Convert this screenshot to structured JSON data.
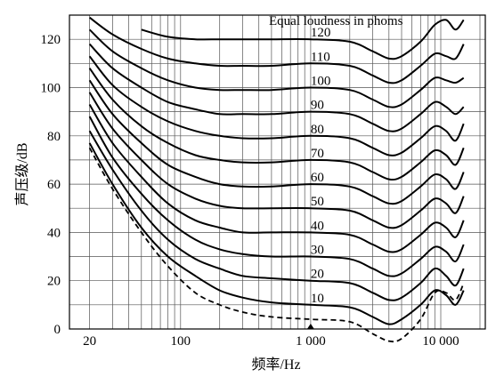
{
  "chart_data": {
    "type": "line",
    "title": "Equal loudness in phoms",
    "xlabel": "频率/Hz",
    "ylabel": "声压级/dB",
    "x_scale": "log",
    "xlim": [
      14,
      22000
    ],
    "ylim": [
      0,
      130
    ],
    "x_ticks": [
      {
        "value": 20,
        "label": "20"
      },
      {
        "value": 100,
        "label": "100"
      },
      {
        "value": 1000,
        "label": "1 000"
      },
      {
        "value": 10000,
        "label": "10 000"
      }
    ],
    "y_ticks": [
      {
        "value": 0,
        "label": "0"
      },
      {
        "value": 20,
        "label": "20"
      },
      {
        "value": 40,
        "label": "40"
      },
      {
        "value": 60,
        "label": "60"
      },
      {
        "value": 80,
        "label": "80"
      },
      {
        "value": 100,
        "label": "100"
      },
      {
        "value": 120,
        "label": "120"
      }
    ],
    "grid": true,
    "series": [
      {
        "name": "10",
        "style": "solid",
        "points": [
          [
            20,
            77
          ],
          [
            30,
            60
          ],
          [
            50,
            42
          ],
          [
            80,
            30
          ],
          [
            130,
            22
          ],
          [
            200,
            16
          ],
          [
            300,
            13
          ],
          [
            500,
            11
          ],
          [
            1000,
            10
          ],
          [
            2000,
            9
          ],
          [
            3000,
            5
          ],
          [
            4000,
            2
          ],
          [
            5000,
            4
          ],
          [
            7000,
            10
          ],
          [
            9000,
            16
          ],
          [
            11000,
            14
          ],
          [
            13000,
            10
          ],
          [
            15000,
            16
          ]
        ]
      },
      {
        "name": "20",
        "style": "solid",
        "points": [
          [
            20,
            82
          ],
          [
            30,
            66
          ],
          [
            50,
            49
          ],
          [
            80,
            37
          ],
          [
            130,
            29
          ],
          [
            200,
            25
          ],
          [
            300,
            22
          ],
          [
            500,
            21
          ],
          [
            1000,
            20
          ],
          [
            2000,
            19
          ],
          [
            3000,
            15
          ],
          [
            4000,
            12
          ],
          [
            5000,
            13
          ],
          [
            7000,
            19
          ],
          [
            9000,
            25
          ],
          [
            11000,
            22
          ],
          [
            13000,
            18
          ],
          [
            15000,
            25
          ]
        ]
      },
      {
        "name": "30",
        "style": "solid",
        "points": [
          [
            20,
            88
          ],
          [
            30,
            71
          ],
          [
            50,
            56
          ],
          [
            80,
            45
          ],
          [
            130,
            37
          ],
          [
            200,
            33
          ],
          [
            300,
            31
          ],
          [
            500,
            30
          ],
          [
            1000,
            30
          ],
          [
            2000,
            29
          ],
          [
            3000,
            25
          ],
          [
            4000,
            22
          ],
          [
            5000,
            23
          ],
          [
            7000,
            29
          ],
          [
            9000,
            34
          ],
          [
            11000,
            32
          ],
          [
            13000,
            28
          ],
          [
            15000,
            35
          ]
        ]
      },
      {
        "name": "40",
        "style": "solid",
        "points": [
          [
            20,
            93
          ],
          [
            30,
            77
          ],
          [
            50,
            63
          ],
          [
            80,
            52
          ],
          [
            130,
            45
          ],
          [
            200,
            42
          ],
          [
            300,
            40
          ],
          [
            500,
            40
          ],
          [
            1000,
            40
          ],
          [
            2000,
            39
          ],
          [
            3000,
            35
          ],
          [
            4000,
            32
          ],
          [
            5000,
            33
          ],
          [
            7000,
            39
          ],
          [
            9000,
            44
          ],
          [
            11000,
            42
          ],
          [
            13000,
            38
          ],
          [
            15000,
            45
          ]
        ]
      },
      {
        "name": "50",
        "style": "solid",
        "points": [
          [
            20,
            98
          ],
          [
            30,
            83
          ],
          [
            50,
            70
          ],
          [
            80,
            60
          ],
          [
            130,
            54
          ],
          [
            200,
            51
          ],
          [
            300,
            50
          ],
          [
            500,
            50
          ],
          [
            1000,
            50
          ],
          [
            2000,
            49
          ],
          [
            3000,
            45
          ],
          [
            4000,
            42
          ],
          [
            5000,
            43
          ],
          [
            7000,
            49
          ],
          [
            9000,
            54
          ],
          [
            11000,
            52
          ],
          [
            13000,
            48
          ],
          [
            15000,
            55
          ]
        ]
      },
      {
        "name": "60",
        "style": "solid",
        "points": [
          [
            20,
            103
          ],
          [
            30,
            89
          ],
          [
            50,
            77
          ],
          [
            80,
            68
          ],
          [
            130,
            63
          ],
          [
            200,
            60
          ],
          [
            300,
            59
          ],
          [
            500,
            59
          ],
          [
            1000,
            60
          ],
          [
            2000,
            59
          ],
          [
            3000,
            55
          ],
          [
            4000,
            52
          ],
          [
            5000,
            53
          ],
          [
            7000,
            59
          ],
          [
            9000,
            64
          ],
          [
            11000,
            62
          ],
          [
            13000,
            58
          ],
          [
            15000,
            65
          ]
        ]
      },
      {
        "name": "70",
        "style": "solid",
        "points": [
          [
            20,
            108
          ],
          [
            30,
            95
          ],
          [
            50,
            84
          ],
          [
            80,
            77
          ],
          [
            130,
            72
          ],
          [
            200,
            70
          ],
          [
            300,
            69
          ],
          [
            500,
            69
          ],
          [
            1000,
            70
          ],
          [
            2000,
            69
          ],
          [
            3000,
            65
          ],
          [
            4000,
            62
          ],
          [
            5000,
            63
          ],
          [
            7000,
            69
          ],
          [
            9000,
            74
          ],
          [
            11000,
            72
          ],
          [
            13000,
            68
          ],
          [
            15000,
            75
          ]
        ]
      },
      {
        "name": "80",
        "style": "solid",
        "points": [
          [
            20,
            113
          ],
          [
            30,
            101
          ],
          [
            50,
            92
          ],
          [
            80,
            86
          ],
          [
            130,
            82
          ],
          [
            200,
            80
          ],
          [
            300,
            79
          ],
          [
            500,
            79
          ],
          [
            1000,
            80
          ],
          [
            2000,
            79
          ],
          [
            3000,
            75
          ],
          [
            4000,
            72
          ],
          [
            5000,
            73
          ],
          [
            7000,
            79
          ],
          [
            9000,
            84
          ],
          [
            11000,
            82
          ],
          [
            13000,
            78
          ],
          [
            15000,
            85
          ]
        ]
      },
      {
        "name": "90",
        "style": "solid",
        "points": [
          [
            20,
            118
          ],
          [
            30,
            108
          ],
          [
            50,
            100
          ],
          [
            80,
            94
          ],
          [
            130,
            91
          ],
          [
            200,
            89
          ],
          [
            300,
            89
          ],
          [
            500,
            89
          ],
          [
            1000,
            90
          ],
          [
            2000,
            89
          ],
          [
            3000,
            85
          ],
          [
            4000,
            82
          ],
          [
            5000,
            83
          ],
          [
            7000,
            89
          ],
          [
            9000,
            94
          ],
          [
            11000,
            92
          ],
          [
            13000,
            89
          ],
          [
            15000,
            92
          ]
        ]
      },
      {
        "name": "100",
        "style": "solid",
        "points": [
          [
            20,
            124
          ],
          [
            30,
            115
          ],
          [
            50,
            108
          ],
          [
            80,
            103
          ],
          [
            130,
            100
          ],
          [
            200,
            99
          ],
          [
            300,
            99
          ],
          [
            500,
            99
          ],
          [
            1000,
            100
          ],
          [
            2000,
            99
          ],
          [
            3000,
            95
          ],
          [
            4000,
            92
          ],
          [
            5000,
            93
          ],
          [
            7000,
            99
          ],
          [
            9000,
            104
          ],
          [
            11000,
            103
          ],
          [
            13000,
            102
          ],
          [
            15000,
            104
          ]
        ]
      },
      {
        "name": "110",
        "style": "solid",
        "points": [
          [
            20,
            129
          ],
          [
            30,
            122
          ],
          [
            50,
            116
          ],
          [
            80,
            112
          ],
          [
            130,
            110
          ],
          [
            200,
            109
          ],
          [
            300,
            109
          ],
          [
            500,
            109
          ],
          [
            1000,
            110
          ],
          [
            2000,
            109
          ],
          [
            3000,
            105
          ],
          [
            4000,
            102
          ],
          [
            5000,
            103
          ],
          [
            7000,
            109
          ],
          [
            9000,
            114
          ],
          [
            11000,
            113
          ],
          [
            13000,
            112
          ],
          [
            15000,
            118
          ]
        ]
      },
      {
        "name": "120",
        "style": "solid",
        "points": [
          [
            50,
            124
          ],
          [
            80,
            121
          ],
          [
            130,
            120
          ],
          [
            200,
            120
          ],
          [
            300,
            120
          ],
          [
            500,
            120
          ],
          [
            1000,
            120
          ],
          [
            2000,
            119
          ],
          [
            3000,
            115
          ],
          [
            4000,
            112
          ],
          [
            5000,
            113
          ],
          [
            7000,
            119
          ],
          [
            9000,
            126
          ],
          [
            11000,
            128
          ],
          [
            13000,
            124
          ],
          [
            15000,
            128
          ]
        ]
      },
      {
        "name": "",
        "style": "dashed",
        "points": [
          [
            20,
            75
          ],
          [
            30,
            58
          ],
          [
            50,
            40
          ],
          [
            80,
            26
          ],
          [
            130,
            15
          ],
          [
            200,
            10
          ],
          [
            300,
            7
          ],
          [
            500,
            5
          ],
          [
            1000,
            4
          ],
          [
            2000,
            3
          ],
          [
            3000,
            -2
          ],
          [
            4000,
            -5
          ],
          [
            5000,
            -4
          ],
          [
            7000,
            4
          ],
          [
            9000,
            15
          ],
          [
            11000,
            15
          ],
          [
            13000,
            12
          ],
          [
            15000,
            19
          ]
        ]
      }
    ]
  }
}
